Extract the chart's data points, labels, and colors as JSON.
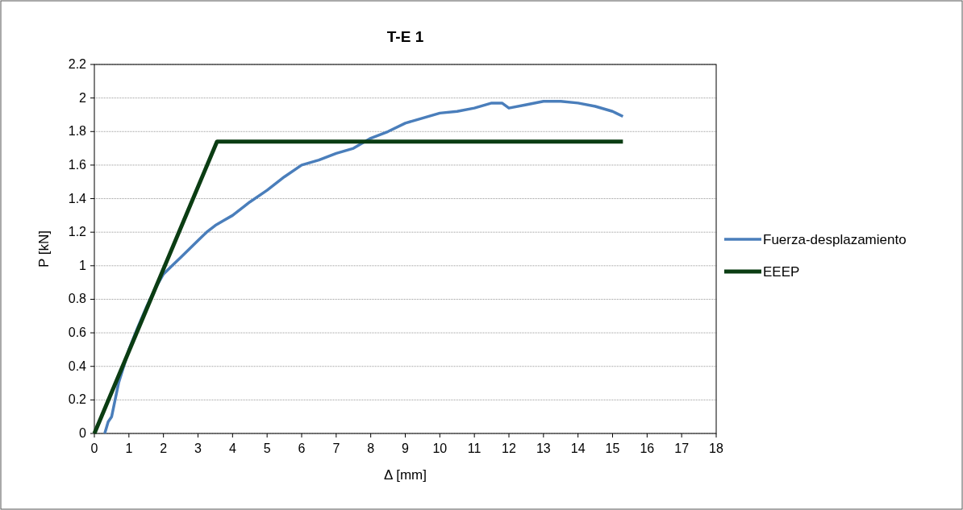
{
  "chart_data": {
    "type": "line",
    "title": "T-E 1",
    "xlabel": "Δ [mm]",
    "ylabel": "P [kN]",
    "xlim": [
      0,
      18
    ],
    "xticks": [
      0,
      1,
      2,
      3,
      4,
      5,
      6,
      7,
      8,
      9,
      10,
      11,
      12,
      13,
      14,
      15,
      16,
      17,
      18
    ],
    "ylim": [
      0,
      2.2
    ],
    "yticks": [
      0,
      0.2,
      0.4,
      0.6,
      0.8,
      1,
      1.2,
      1.4,
      1.6,
      1.8,
      2,
      2.2
    ],
    "grid": "y",
    "legend": "right",
    "line_style": "solid",
    "series": [
      {
        "name": "Fuerza-desplazamiento",
        "color": "#4a7ebb",
        "x": [
          0.3,
          0.4,
          0.5,
          0.6,
          0.7,
          0.85,
          1,
          1.25,
          1.5,
          1.75,
          2,
          2.25,
          2.5,
          2.75,
          3,
          3.25,
          3.5,
          3.75,
          4,
          4.5,
          5,
          5.5,
          6,
          6.5,
          7,
          7.5,
          8,
          8.5,
          9,
          9.5,
          10,
          10.5,
          11,
          11.5,
          11.8,
          12,
          12.5,
          13,
          13.5,
          14,
          14.5,
          15,
          15.3
        ],
        "values": [
          0,
          0.07,
          0.1,
          0.2,
          0.3,
          0.4,
          0.5,
          0.63,
          0.75,
          0.86,
          0.95,
          1.0,
          1.05,
          1.1,
          1.15,
          1.2,
          1.24,
          1.27,
          1.3,
          1.38,
          1.45,
          1.53,
          1.6,
          1.63,
          1.67,
          1.7,
          1.76,
          1.8,
          1.85,
          1.88,
          1.91,
          1.92,
          1.94,
          1.97,
          1.97,
          1.94,
          1.96,
          1.98,
          1.98,
          1.97,
          1.95,
          1.92,
          1.89
        ]
      },
      {
        "name": "EEEP",
        "color": "#0b3d13",
        "x": [
          0,
          3.55,
          15.3
        ],
        "values": [
          0,
          1.74,
          1.74
        ]
      }
    ]
  }
}
